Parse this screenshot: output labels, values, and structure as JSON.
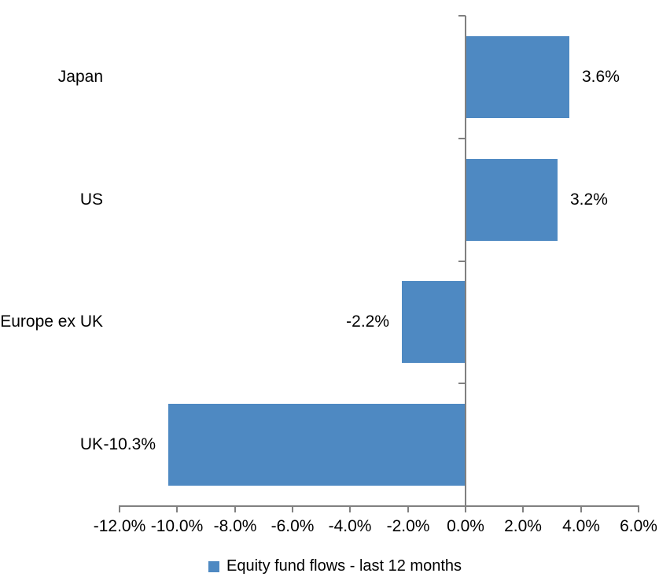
{
  "chart_data": {
    "type": "bar",
    "orientation": "horizontal",
    "title": "",
    "xlabel": "",
    "ylabel": "",
    "categories": [
      "Japan",
      "US",
      "Europe ex UK",
      "UK"
    ],
    "series": [
      {
        "name": "Equity fund flows - last 12 months",
        "values": [
          3.6,
          3.2,
          -2.2,
          -10.3
        ],
        "data_labels": [
          "3.6%",
          "3.2%",
          "-2.2%",
          "-10.3%"
        ]
      }
    ],
    "xlim": [
      -12,
      6
    ],
    "x_tick_step": 2,
    "x_tick_values": [
      -12,
      -10,
      -8,
      -6,
      -4,
      -2,
      0,
      2,
      4,
      6
    ],
    "x_tick_labels": [
      "-12.0%",
      "-10.0%",
      "-8.0%",
      "-6.0%",
      "-4.0%",
      "-2.0%",
      "0.0%",
      "2.0%",
      "4.0%",
      "6.0%"
    ],
    "grid": false,
    "legend_position": "bottom",
    "legend_label": "Equity fund flows - last 12 months",
    "bar_color": "#4E89C2",
    "axis_color": "#808080",
    "text_color": "#000000",
    "background_color": "#FFFFFF"
  }
}
